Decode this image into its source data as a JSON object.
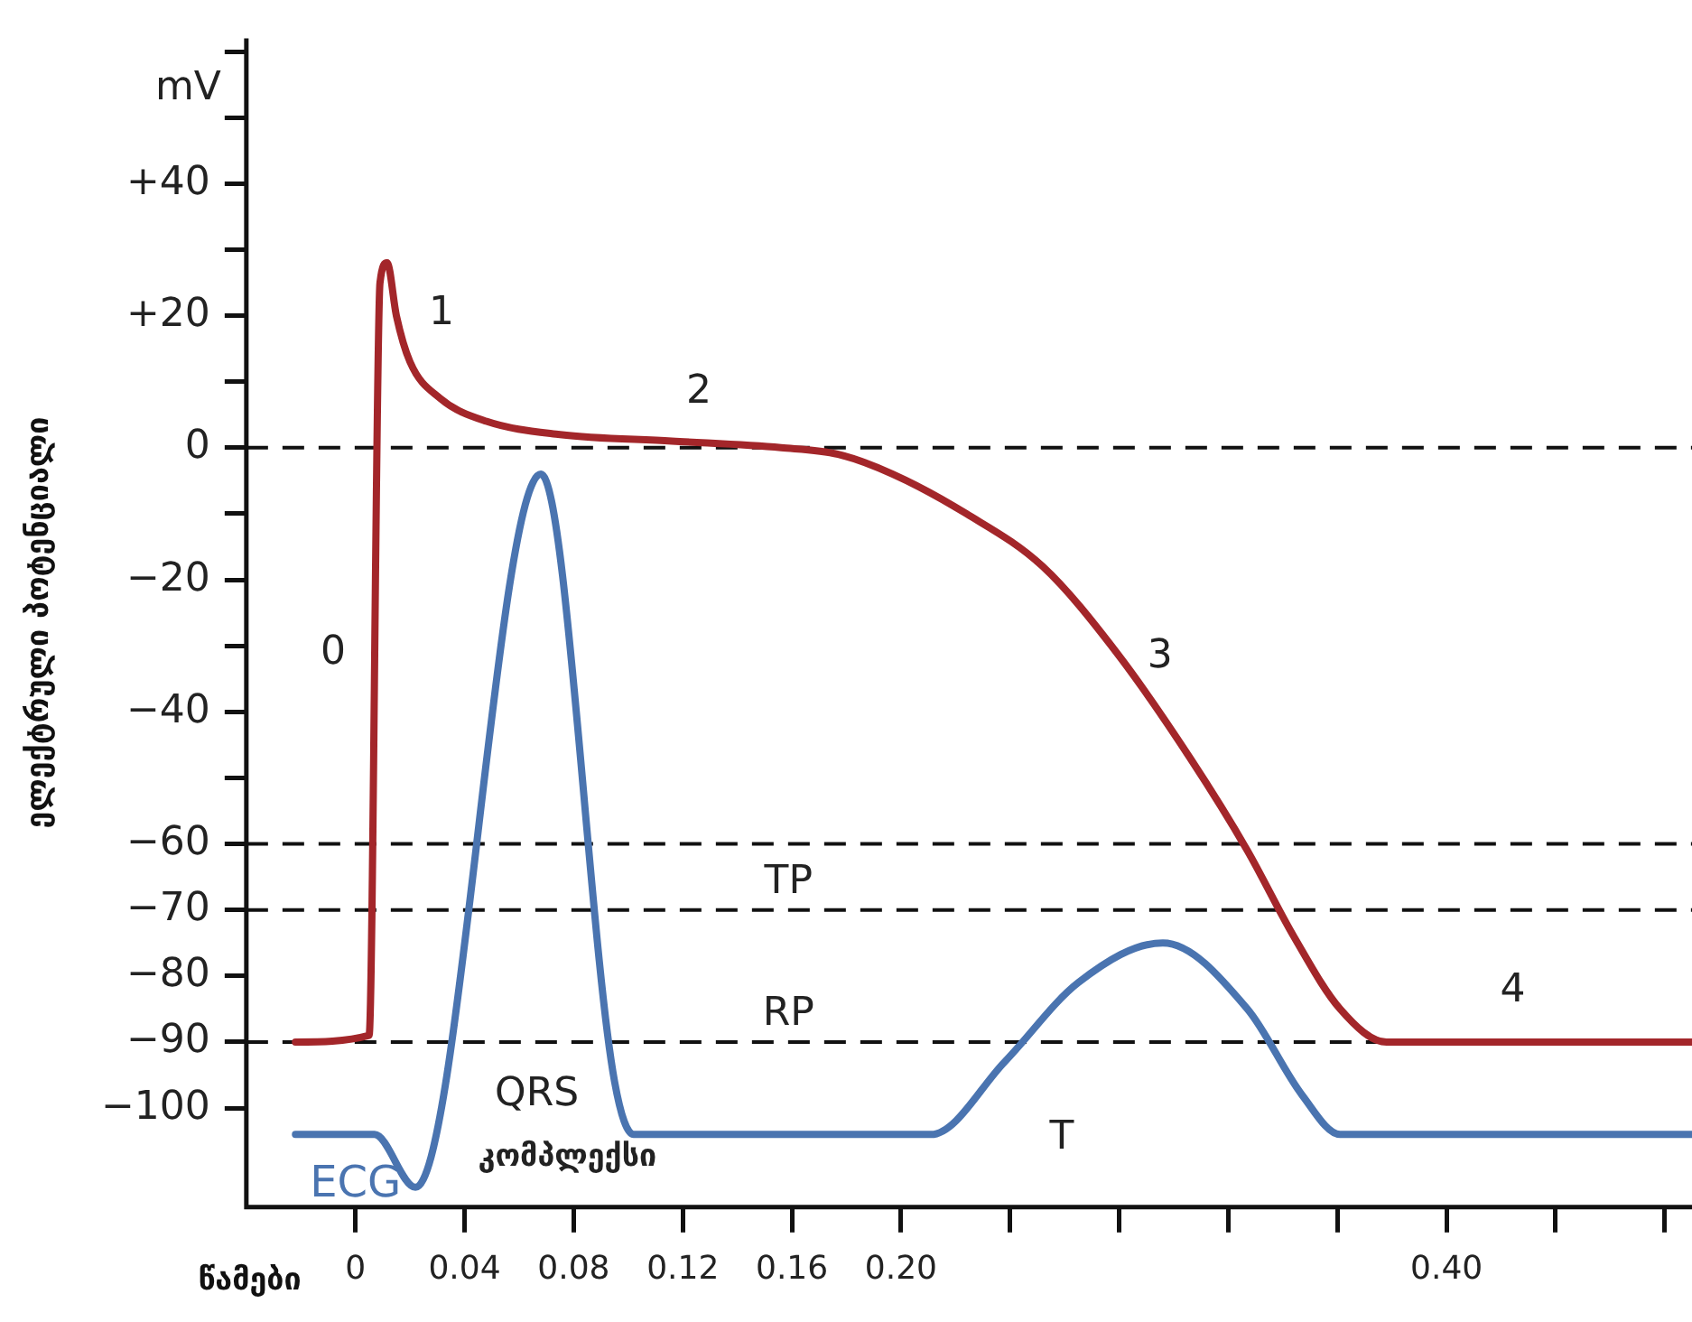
{
  "chart_data": {
    "type": "line",
    "xlabel": "წამები",
    "ylabel": "ელექტრული პოტენციალი",
    "xlim": [
      -0.04,
      0.49
    ],
    "ylim": [
      -115,
      62
    ],
    "xticks": [
      0,
      0.04,
      0.08,
      0.12,
      0.16,
      {
        "value": 0.2,
        "label": "0.20"
      },
      {
        "value": 0.24,
        "label": null
      },
      {
        "value": 0.28,
        "label": null
      },
      {
        "value": 0.32,
        "label": null
      },
      {
        "value": 0.36,
        "label": null
      },
      {
        "value": 0.4,
        "label": "0.40"
      },
      {
        "value": 0.44,
        "label": null
      },
      {
        "value": 0.48,
        "label": null
      }
    ],
    "yticks": [
      {
        "value": 60,
        "label": null
      },
      {
        "value": 50,
        "label": null
      },
      {
        "value": 40,
        "label": "+40"
      },
      {
        "value": 30,
        "label": null
      },
      {
        "value": 20,
        "label": "+20"
      },
      {
        "value": 10,
        "label": null
      },
      0,
      {
        "value": -10,
        "label": null
      },
      {
        "value": -20,
        "label": "−20"
      },
      {
        "value": -30,
        "label": null
      },
      {
        "value": -40,
        "label": "−40"
      },
      {
        "value": -50,
        "label": null
      },
      {
        "value": -60,
        "label": "−60"
      },
      {
        "value": -70,
        "label": "−70"
      },
      {
        "value": -80,
        "label": "−80"
      },
      {
        "value": -90,
        "label": "−90"
      },
      {
        "value": -100,
        "label": "−100"
      }
    ],
    "marker": "none",
    "line_style": "solid",
    "series": [
      {
        "color": "#a3262a",
        "x": [
          -0.022,
          0.005,
          0.009,
          0.0116,
          0.015,
          0.02,
          0.031,
          0.048,
          0.075,
          0.116,
          0.156,
          0.177,
          0.197,
          0.224,
          0.252,
          0.279,
          0.306,
          0.327,
          0.344,
          0.361,
          0.378,
          0.49
        ],
        "values": [
          -90,
          -89,
          25,
          28,
          20,
          13,
          7.5,
          4,
          2,
          1,
          0,
          -1,
          -4,
          -10,
          -18,
          -31,
          -47,
          -61,
          -74,
          -85,
          -90,
          -90
        ]
      },
      {
        "name": "ECG",
        "color": "#4a74b0",
        "x": [
          -0.022,
          0.007,
          0.022,
          0.068,
          0.095,
          0.102,
          0.211,
          0.238,
          0.265,
          0.296,
          0.327,
          0.347,
          0.361,
          0.49
        ],
        "values": [
          -104,
          -104,
          -112,
          -4,
          -96,
          -104,
          -104,
          -93,
          -81,
          -75,
          -85,
          -98,
          -104,
          -104
        ]
      }
    ],
    "ref_lines": [
      {
        "axis": "y",
        "value": 0,
        "line_style": "dashed"
      },
      {
        "axis": "y",
        "value": -60,
        "line_style": "dashed"
      },
      {
        "axis": "y",
        "value": -70,
        "label": "TP",
        "line_style": "dashed"
      },
      {
        "axis": "y",
        "value": -90,
        "label": "RP",
        "line_style": "dashed"
      }
    ],
    "annotations": [
      "mV",
      "0",
      "1",
      "2",
      "3",
      "4",
      "QRS",
      "კომპლექსი",
      "T"
    ]
  }
}
